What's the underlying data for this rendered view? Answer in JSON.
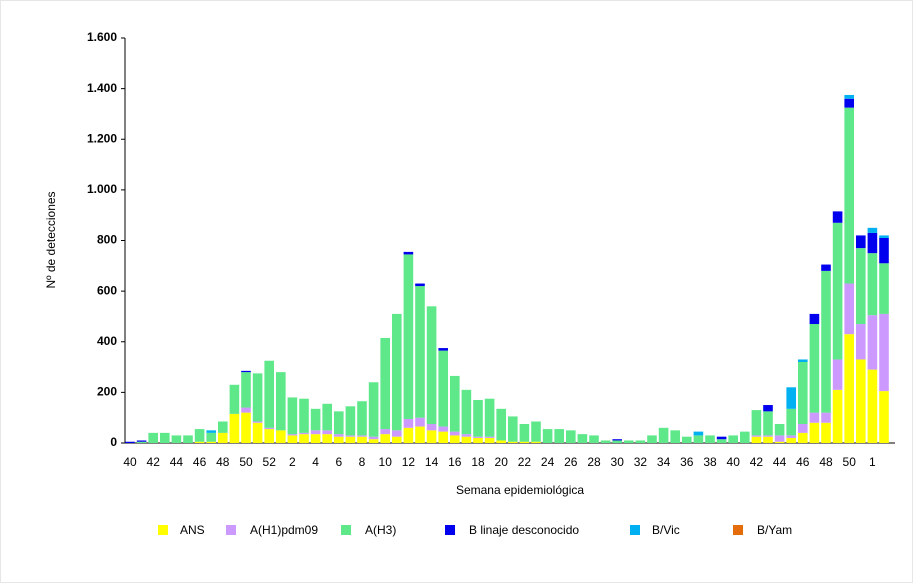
{
  "chart_data": {
    "type": "stacked_bar",
    "x_label": "Semana epidemiológica",
    "y_label": "Nº de detecciones",
    "categories": [
      "40",
      null,
      "42",
      null,
      "44",
      null,
      "46",
      null,
      "48",
      null,
      "50",
      null,
      "52",
      null,
      "2",
      null,
      "4",
      null,
      "6",
      null,
      "8",
      null,
      "10",
      null,
      "12",
      null,
      "14",
      null,
      "16",
      null,
      "18",
      null,
      "20",
      null,
      "22",
      null,
      "24",
      null,
      "26",
      null,
      "28",
      null,
      "30",
      null,
      "32",
      null,
      "34",
      null,
      "36",
      null,
      "38",
      null,
      "40",
      null,
      "42",
      null,
      "44",
      null,
      "46",
      null,
      "48",
      null,
      "50",
      null,
      "1",
      null
    ],
    "ylim": [
      0,
      1600
    ],
    "yticks": [
      0,
      200,
      400,
      600,
      800,
      {
        "value": 1000,
        "label": "1.000"
      },
      {
        "value": 1200,
        "label": "1.200"
      },
      {
        "value": 1400,
        "label": "1.400"
      },
      {
        "value": 1600,
        "label": "1.600"
      }
    ],
    "series": [
      {
        "name": "ANS",
        "color": "#ffff00",
        "values": [
          0,
          0,
          0,
          0,
          0,
          0,
          5,
          5,
          40,
          115,
          120,
          80,
          55,
          50,
          30,
          35,
          35,
          35,
          25,
          25,
          25,
          15,
          35,
          25,
          60,
          65,
          50,
          45,
          30,
          25,
          20,
          20,
          10,
          5,
          5,
          5,
          0,
          0,
          0,
          0,
          0,
          0,
          0,
          0,
          0,
          0,
          0,
          0,
          0,
          0,
          0,
          0,
          0,
          0,
          25,
          25,
          5,
          20,
          40,
          80,
          80,
          210,
          430,
          330,
          290,
          205
        ]
      },
      {
        "name": "A(H1)pdm09",
        "color": "#cc99ff",
        "values": [
          0,
          0,
          0,
          0,
          0,
          0,
          0,
          0,
          0,
          0,
          20,
          5,
          5,
          0,
          5,
          5,
          15,
          15,
          10,
          5,
          5,
          10,
          20,
          25,
          35,
          35,
          25,
          20,
          15,
          10,
          5,
          5,
          0,
          0,
          0,
          0,
          0,
          0,
          0,
          0,
          0,
          0,
          0,
          0,
          0,
          0,
          0,
          0,
          0,
          0,
          0,
          0,
          0,
          0,
          5,
          5,
          25,
          10,
          35,
          40,
          40,
          120,
          200,
          140,
          215,
          305
        ]
      },
      {
        "name": "A(H3)",
        "color": "#5ee88a",
        "values": [
          0,
          5,
          40,
          40,
          30,
          30,
          50,
          35,
          45,
          115,
          140,
          190,
          265,
          230,
          145,
          135,
          85,
          105,
          90,
          115,
          135,
          215,
          360,
          460,
          650,
          520,
          465,
          300,
          220,
          175,
          145,
          150,
          125,
          100,
          70,
          80,
          55,
          55,
          50,
          35,
          30,
          10,
          10,
          10,
          10,
          30,
          60,
          50,
          25,
          30,
          30,
          15,
          30,
          45,
          100,
          95,
          45,
          105,
          245,
          350,
          560,
          540,
          695,
          300,
          245,
          200
        ]
      },
      {
        "name": "B linaje desconocido",
        "color": "#0000ee",
        "values": [
          5,
          5,
          0,
          0,
          0,
          0,
          0,
          0,
          0,
          0,
          5,
          0,
          0,
          0,
          0,
          0,
          0,
          0,
          0,
          0,
          0,
          0,
          0,
          0,
          10,
          10,
          0,
          10,
          0,
          0,
          0,
          0,
          0,
          0,
          0,
          0,
          0,
          0,
          0,
          0,
          0,
          0,
          5,
          0,
          0,
          0,
          0,
          0,
          0,
          0,
          0,
          10,
          0,
          0,
          0,
          25,
          0,
          0,
          0,
          40,
          25,
          45,
          35,
          50,
          80,
          100
        ]
      },
      {
        "name": "B/Vic",
        "color": "#00b0f0",
        "values": [
          0,
          0,
          0,
          0,
          0,
          0,
          0,
          10,
          0,
          0,
          0,
          0,
          0,
          0,
          0,
          0,
          0,
          0,
          0,
          0,
          0,
          0,
          0,
          0,
          0,
          0,
          0,
          0,
          0,
          0,
          0,
          0,
          0,
          0,
          0,
          0,
          0,
          0,
          0,
          0,
          0,
          0,
          0,
          0,
          0,
          0,
          0,
          0,
          0,
          15,
          0,
          0,
          0,
          0,
          0,
          0,
          0,
          85,
          10,
          0,
          0,
          0,
          15,
          0,
          20,
          10
        ]
      },
      {
        "name": "B/Yam",
        "color": "#e46c0a",
        "values": [
          0,
          0,
          0,
          0,
          0,
          0,
          0,
          0,
          0,
          0,
          0,
          0,
          0,
          0,
          0,
          0,
          0,
          0,
          0,
          0,
          0,
          0,
          0,
          0,
          0,
          0,
          0,
          0,
          0,
          0,
          0,
          0,
          0,
          0,
          0,
          0,
          0,
          0,
          0,
          0,
          0,
          0,
          0,
          0,
          0,
          0,
          0,
          0,
          0,
          0,
          0,
          0,
          0,
          0,
          0,
          0,
          0,
          0,
          0,
          0,
          0,
          0,
          0,
          0,
          0,
          0
        ]
      }
    ]
  }
}
